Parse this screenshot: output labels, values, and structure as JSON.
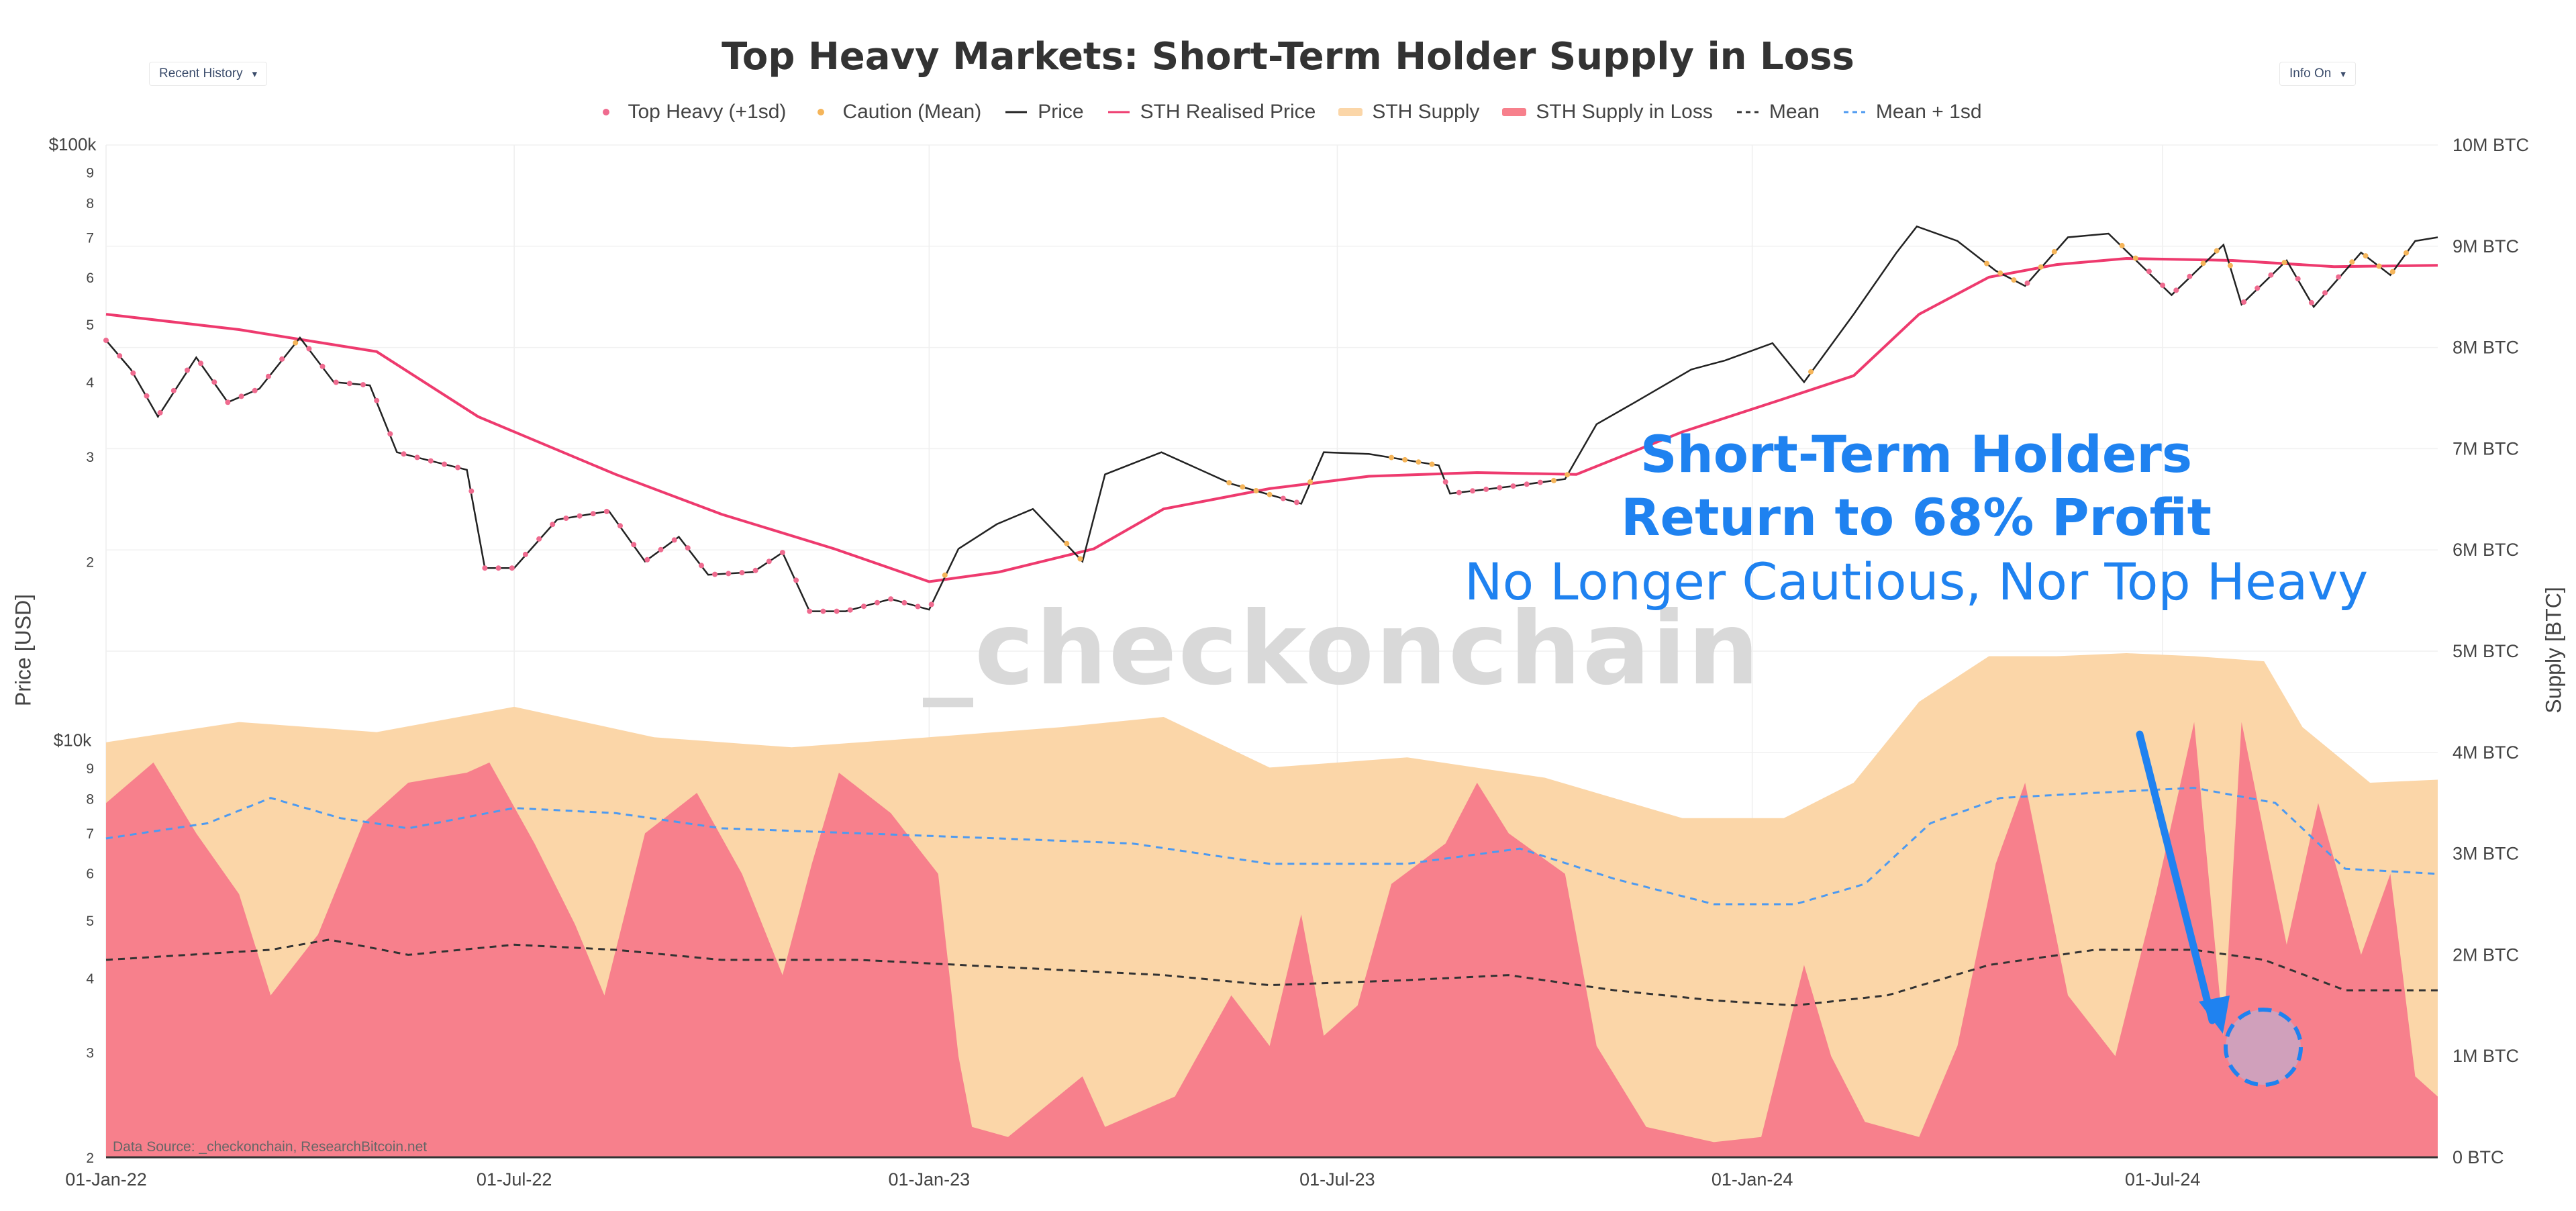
{
  "header": {
    "title": "Top Heavy Markets: Short-Term Holder Supply in Loss",
    "left_dropdown": "Recent History",
    "right_dropdown": "Info On",
    "caret": "▾"
  },
  "legend": [
    {
      "label": "Top Heavy (+1sd)",
      "kind": "dot",
      "color": "#ef6b8f"
    },
    {
      "label": "Caution (Mean)",
      "kind": "dot",
      "color": "#f5b55a"
    },
    {
      "label": "Price",
      "kind": "line",
      "color": "#222222"
    },
    {
      "label": "STH Realised Price",
      "kind": "line",
      "color": "#ee3a6e"
    },
    {
      "label": "STH Supply",
      "kind": "fill",
      "color": "#fbd6a8"
    },
    {
      "label": "STH Supply in Loss",
      "kind": "fill",
      "color": "#f7808c"
    },
    {
      "label": "Mean",
      "kind": "dash",
      "color": "#333333"
    },
    {
      "label": "Mean + 1sd",
      "kind": "dash",
      "color": "#4d9af0"
    }
  ],
  "annotations": {
    "line1": "Short-Term Holders",
    "line2": "Return to 68% Profit",
    "line3": "No Longer Cautious, Nor Top Heavy"
  },
  "watermark": "_checkonchain",
  "data_source": "Data Source: _checkonchain, ResearchBitcoin.net",
  "chart_data": {
    "type": "line",
    "title": "Top Heavy Markets: Short-Term Holder Supply in Loss",
    "x_axis": {
      "ticks": [
        "01-Jan-22",
        "01-Jul-22",
        "01-Jan-23",
        "01-Jul-23",
        "01-Jan-24",
        "01-Jul-24"
      ],
      "range": [
        "2022-01-01",
        "2024-10-31"
      ]
    },
    "y_left": {
      "label": "Price [USD]",
      "scale": "log",
      "range": [
        2000,
        100000
      ],
      "tick_labels": [
        {
          "v": 100000,
          "t": "$100k"
        },
        {
          "v": 90000,
          "t": "9"
        },
        {
          "v": 80000,
          "t": "8"
        },
        {
          "v": 70000,
          "t": "7"
        },
        {
          "v": 60000,
          "t": "6"
        },
        {
          "v": 50000,
          "t": "5"
        },
        {
          "v": 40000,
          "t": "4"
        },
        {
          "v": 30000,
          "t": "3"
        },
        {
          "v": 20000,
          "t": "2"
        },
        {
          "v": 10000,
          "t": "$10k"
        },
        {
          "v": 9000,
          "t": "9"
        },
        {
          "v": 8000,
          "t": "8"
        },
        {
          "v": 7000,
          "t": "7"
        },
        {
          "v": 6000,
          "t": "6"
        },
        {
          "v": 5000,
          "t": "5"
        },
        {
          "v": 4000,
          "t": "4"
        },
        {
          "v": 3000,
          "t": "3"
        },
        {
          "v": 2000,
          "t": "2"
        }
      ]
    },
    "y_right": {
      "label": "Supply [BTC]",
      "scale": "linear",
      "range": [
        0,
        10000000
      ],
      "tick_labels": [
        {
          "v": 10000000,
          "t": "10M BTC"
        },
        {
          "v": 9000000,
          "t": "9M BTC"
        },
        {
          "v": 8000000,
          "t": "8M BTC"
        },
        {
          "v": 7000000,
          "t": "7M BTC"
        },
        {
          "v": 6000000,
          "t": "6M BTC"
        },
        {
          "v": 5000000,
          "t": "5M BTC"
        },
        {
          "v": 4000000,
          "t": "4M BTC"
        },
        {
          "v": 3000000,
          "t": "3M BTC"
        },
        {
          "v": 2000000,
          "t": "2M BTC"
        },
        {
          "v": 1000000,
          "t": "1M BTC"
        },
        {
          "v": 0,
          "t": "0 BTC"
        }
      ]
    },
    "series": [
      {
        "name": "Price",
        "axis": "left",
        "color": "#222222",
        "points": [
          [
            "2022-01-01",
            47000
          ],
          [
            "2022-01-12",
            42000
          ],
          [
            "2022-01-24",
            35000
          ],
          [
            "2022-02-10",
            44000
          ],
          [
            "2022-02-24",
            37000
          ],
          [
            "2022-03-10",
            39000
          ],
          [
            "2022-03-28",
            47500
          ],
          [
            "2022-04-12",
            40000
          ],
          [
            "2022-04-28",
            39500
          ],
          [
            "2022-05-10",
            30500
          ],
          [
            "2022-05-25",
            29500
          ],
          [
            "2022-06-10",
            28500
          ],
          [
            "2022-06-18",
            19500
          ],
          [
            "2022-07-01",
            19500
          ],
          [
            "2022-07-20",
            23500
          ],
          [
            "2022-08-12",
            24300
          ],
          [
            "2022-08-28",
            20000
          ],
          [
            "2022-09-12",
            22000
          ],
          [
            "2022-09-25",
            19000
          ],
          [
            "2022-10-15",
            19200
          ],
          [
            "2022-10-28",
            20700
          ],
          [
            "2022-11-09",
            16500
          ],
          [
            "2022-11-25",
            16500
          ],
          [
            "2022-12-15",
            17300
          ],
          [
            "2023-01-01",
            16600
          ],
          [
            "2023-01-14",
            21000
          ],
          [
            "2023-01-31",
            23100
          ],
          [
            "2023-02-16",
            24500
          ],
          [
            "2023-03-10",
            20000
          ],
          [
            "2023-03-20",
            28000
          ],
          [
            "2023-04-14",
            30500
          ],
          [
            "2023-05-15",
            27000
          ],
          [
            "2023-06-15",
            25000
          ],
          [
            "2023-06-25",
            30500
          ],
          [
            "2023-07-15",
            30300
          ],
          [
            "2023-08-15",
            29000
          ],
          [
            "2023-08-20",
            26000
          ],
          [
            "2023-09-15",
            26700
          ],
          [
            "2023-10-10",
            27500
          ],
          [
            "2023-10-24",
            34000
          ],
          [
            "2023-11-10",
            37000
          ],
          [
            "2023-12-05",
            42000
          ],
          [
            "2023-12-20",
            43500
          ],
          [
            "2024-01-10",
            46500
          ],
          [
            "2024-01-24",
            40000
          ],
          [
            "2024-02-15",
            52000
          ],
          [
            "2024-03-05",
            66000
          ],
          [
            "2024-03-14",
            73000
          ],
          [
            "2024-04-01",
            69000
          ],
          [
            "2024-04-18",
            61500
          ],
          [
            "2024-05-01",
            58000
          ],
          [
            "2024-05-20",
            70000
          ],
          [
            "2024-06-07",
            71000
          ],
          [
            "2024-07-05",
            56000
          ],
          [
            "2024-07-28",
            68000
          ],
          [
            "2024-08-05",
            54000
          ],
          [
            "2024-08-25",
            64000
          ],
          [
            "2024-09-06",
            53500
          ],
          [
            "2024-09-27",
            66000
          ],
          [
            "2024-10-10",
            60500
          ],
          [
            "2024-10-21",
            69000
          ],
          [
            "2024-10-31",
            70000
          ]
        ]
      },
      {
        "name": "STH Realised Price",
        "axis": "left",
        "color": "#ee3a6e",
        "points": [
          [
            "2022-01-01",
            52000
          ],
          [
            "2022-03-01",
            49000
          ],
          [
            "2022-05-01",
            45000
          ],
          [
            "2022-06-15",
            35000
          ],
          [
            "2022-08-15",
            28000
          ],
          [
            "2022-10-01",
            24000
          ],
          [
            "2022-11-20",
            21000
          ],
          [
            "2023-01-01",
            18500
          ],
          [
            "2023-02-01",
            19200
          ],
          [
            "2023-03-15",
            21000
          ],
          [
            "2023-04-15",
            24500
          ],
          [
            "2023-06-01",
            26500
          ],
          [
            "2023-07-15",
            27800
          ],
          [
            "2023-09-01",
            28200
          ],
          [
            "2023-10-15",
            28000
          ],
          [
            "2023-12-01",
            33000
          ],
          [
            "2024-01-15",
            37500
          ],
          [
            "2024-02-15",
            41000
          ],
          [
            "2024-03-15",
            52000
          ],
          [
            "2024-04-15",
            60000
          ],
          [
            "2024-05-15",
            63000
          ],
          [
            "2024-06-15",
            64500
          ],
          [
            "2024-08-01",
            64000
          ],
          [
            "2024-09-15",
            62500
          ],
          [
            "2024-10-31",
            62800
          ]
        ]
      },
      {
        "name": "STH Supply",
        "axis": "right",
        "color": "#fbd6a8",
        "points": [
          [
            "2022-01-01",
            4100000
          ],
          [
            "2022-03-01",
            4300000
          ],
          [
            "2022-05-01",
            4200000
          ],
          [
            "2022-07-01",
            4450000
          ],
          [
            "2022-09-01",
            4150000
          ],
          [
            "2022-11-01",
            4050000
          ],
          [
            "2023-01-01",
            4150000
          ],
          [
            "2023-03-01",
            4250000
          ],
          [
            "2023-04-15",
            4350000
          ],
          [
            "2023-06-01",
            3850000
          ],
          [
            "2023-08-01",
            3950000
          ],
          [
            "2023-10-01",
            3750000
          ],
          [
            "2023-12-01",
            3350000
          ],
          [
            "2024-01-15",
            3350000
          ],
          [
            "2024-02-15",
            3700000
          ],
          [
            "2024-03-15",
            4500000
          ],
          [
            "2024-04-15",
            4950000
          ],
          [
            "2024-05-15",
            4950000
          ],
          [
            "2024-06-15",
            4980000
          ],
          [
            "2024-07-15",
            4950000
          ],
          [
            "2024-08-15",
            4900000
          ],
          [
            "2024-09-01",
            4250000
          ],
          [
            "2024-10-01",
            3700000
          ],
          [
            "2024-10-31",
            3730000
          ]
        ]
      },
      {
        "name": "STH Supply in Loss",
        "axis": "right",
        "color": "#f7808c",
        "points": [
          [
            "2022-01-01",
            3500000
          ],
          [
            "2022-01-22",
            3900000
          ],
          [
            "2022-02-10",
            3200000
          ],
          [
            "2022-03-01",
            2600000
          ],
          [
            "2022-03-15",
            1600000
          ],
          [
            "2022-04-05",
            2200000
          ],
          [
            "2022-04-25",
            3300000
          ],
          [
            "2022-05-15",
            3700000
          ],
          [
            "2022-06-10",
            3800000
          ],
          [
            "2022-06-20",
            3900000
          ],
          [
            "2022-07-10",
            3100000
          ],
          [
            "2022-07-28",
            2300000
          ],
          [
            "2022-08-10",
            1600000
          ],
          [
            "2022-08-28",
            3200000
          ],
          [
            "2022-09-20",
            3600000
          ],
          [
            "2022-10-10",
            2800000
          ],
          [
            "2022-10-28",
            1800000
          ],
          [
            "2022-11-10",
            2900000
          ],
          [
            "2022-11-22",
            3800000
          ],
          [
            "2022-12-15",
            3400000
          ],
          [
            "2023-01-05",
            2800000
          ],
          [
            "2023-01-14",
            1000000
          ],
          [
            "2023-01-20",
            300000
          ],
          [
            "2023-02-05",
            200000
          ],
          [
            "2023-03-10",
            800000
          ],
          [
            "2023-03-20",
            300000
          ],
          [
            "2023-04-20",
            600000
          ],
          [
            "2023-05-15",
            1600000
          ],
          [
            "2023-06-01",
            1100000
          ],
          [
            "2023-06-15",
            2400000
          ],
          [
            "2023-06-25",
            1200000
          ],
          [
            "2023-07-10",
            1500000
          ],
          [
            "2023-07-25",
            2700000
          ],
          [
            "2023-08-18",
            3100000
          ],
          [
            "2023-09-01",
            3700000
          ],
          [
            "2023-09-15",
            3200000
          ],
          [
            "2023-10-10",
            2800000
          ],
          [
            "2023-10-24",
            1100000
          ],
          [
            "2023-11-15",
            300000
          ],
          [
            "2023-12-15",
            150000
          ],
          [
            "2024-01-05",
            200000
          ],
          [
            "2024-01-24",
            1900000
          ],
          [
            "2024-02-05",
            1000000
          ],
          [
            "2024-02-20",
            350000
          ],
          [
            "2024-03-15",
            200000
          ],
          [
            "2024-04-01",
            1100000
          ],
          [
            "2024-04-18",
            2900000
          ],
          [
            "2024-05-01",
            3700000
          ],
          [
            "2024-05-20",
            1600000
          ],
          [
            "2024-06-10",
            1000000
          ],
          [
            "2024-06-28",
            2600000
          ],
          [
            "2024-07-15",
            4300000
          ],
          [
            "2024-07-28",
            1200000
          ],
          [
            "2024-08-05",
            4300000
          ],
          [
            "2024-08-25",
            2100000
          ],
          [
            "2024-09-08",
            3500000
          ],
          [
            "2024-09-27",
            2000000
          ],
          [
            "2024-10-10",
            2800000
          ],
          [
            "2024-10-21",
            800000
          ],
          [
            "2024-10-31",
            600000
          ]
        ]
      },
      {
        "name": "Mean",
        "axis": "right",
        "color": "#333333",
        "points": [
          [
            "2022-01-01",
            1950000
          ],
          [
            "2022-03-15",
            2050000
          ],
          [
            "2022-04-10",
            2150000
          ],
          [
            "2022-05-15",
            2000000
          ],
          [
            "2022-07-01",
            2100000
          ],
          [
            "2022-08-15",
            2050000
          ],
          [
            "2022-10-01",
            1950000
          ],
          [
            "2022-12-01",
            1950000
          ],
          [
            "2023-01-15",
            1900000
          ],
          [
            "2023-03-01",
            1850000
          ],
          [
            "2023-04-15",
            1800000
          ],
          [
            "2023-06-01",
            1700000
          ],
          [
            "2023-08-01",
            1750000
          ],
          [
            "2023-09-15",
            1800000
          ],
          [
            "2023-11-01",
            1650000
          ],
          [
            "2023-12-15",
            1550000
          ],
          [
            "2024-01-20",
            1500000
          ],
          [
            "2024-03-01",
            1600000
          ],
          [
            "2024-04-15",
            1900000
          ],
          [
            "2024-06-01",
            2050000
          ],
          [
            "2024-07-15",
            2050000
          ],
          [
            "2024-08-15",
            1950000
          ],
          [
            "2024-09-20",
            1650000
          ],
          [
            "2024-10-31",
            1650000
          ]
        ]
      },
      {
        "name": "Mean + 1sd",
        "axis": "right",
        "color": "#4d9af0",
        "points": [
          [
            "2022-01-01",
            3150000
          ],
          [
            "2022-02-15",
            3300000
          ],
          [
            "2022-03-15",
            3550000
          ],
          [
            "2022-04-15",
            3350000
          ],
          [
            "2022-05-15",
            3250000
          ],
          [
            "2022-07-01",
            3450000
          ],
          [
            "2022-08-15",
            3400000
          ],
          [
            "2022-10-01",
            3250000
          ],
          [
            "2022-12-01",
            3200000
          ],
          [
            "2023-02-01",
            3150000
          ],
          [
            "2023-04-01",
            3100000
          ],
          [
            "2023-06-01",
            2900000
          ],
          [
            "2023-08-01",
            2900000
          ],
          [
            "2023-09-20",
            3050000
          ],
          [
            "2023-11-01",
            2750000
          ],
          [
            "2023-12-15",
            2500000
          ],
          [
            "2024-01-20",
            2500000
          ],
          [
            "2024-02-20",
            2700000
          ],
          [
            "2024-03-20",
            3300000
          ],
          [
            "2024-04-20",
            3550000
          ],
          [
            "2024-06-01",
            3600000
          ],
          [
            "2024-07-15",
            3650000
          ],
          [
            "2024-08-20",
            3500000
          ],
          [
            "2024-09-20",
            2850000
          ],
          [
            "2024-10-31",
            2800000
          ]
        ]
      }
    ]
  }
}
